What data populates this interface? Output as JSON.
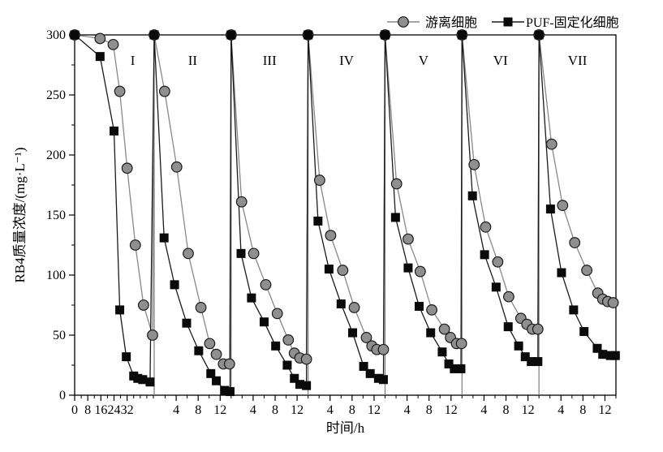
{
  "chart_data": {
    "type": "line",
    "title": "",
    "xlabel": "时间/h",
    "ylabel": "RB4质量浓度/(mg·L⁻¹)",
    "ylim": [
      0,
      300
    ],
    "y_major_ticks": [
      0,
      50,
      100,
      150,
      200,
      250,
      300
    ],
    "y_minor_step": 25,
    "grid": false,
    "legend_position": "top-right",
    "legend": [
      {
        "name": "游离细胞",
        "marker": "circle",
        "marker_color": "#8f8f8f",
        "marker_stroke": "#1a1a1a",
        "line_color": "#888888"
      },
      {
        "name": "PUF-固定化细胞",
        "marker": "square",
        "marker_color": "#0a0a0a",
        "marker_stroke": "#0a0a0a",
        "line_color": "#1a1a1a"
      }
    ],
    "cycles": [
      {
        "label": "I",
        "duration": 48.5,
        "label_pos": 0.73,
        "x_major_ticks": [
          {
            "t": 0,
            "text": "0"
          },
          {
            "t": 8,
            "text": "8"
          },
          {
            "t": 16,
            "text": "16"
          },
          {
            "t": 24,
            "text": "24"
          },
          {
            "t": 32,
            "text": "32"
          }
        ],
        "x_minor_ticks": [
          4,
          12,
          20,
          28,
          36,
          40,
          44,
          48
        ],
        "free_cells": {
          "t": [
            0,
            15.5,
            23.5,
            27.5,
            32,
            37,
            42,
            47.5
          ],
          "v": [
            300,
            297,
            292,
            253,
            189,
            125,
            75,
            50
          ]
        },
        "puf_cells": {
          "t": [
            0,
            15.5,
            24,
            27.5,
            31.5,
            36,
            38.5,
            41.5,
            46
          ],
          "v": [
            300,
            282,
            220,
            71,
            32,
            16,
            14,
            13,
            11
          ]
        }
      },
      {
        "label": "II",
        "duration": 14,
        "label_pos": 0.5,
        "x_major_ticks": [
          {
            "t": 4,
            "text": "4"
          },
          {
            "t": 8,
            "text": "8"
          },
          {
            "t": 12,
            "text": "12"
          }
        ],
        "x_minor_ticks": [
          2,
          6,
          10,
          14
        ],
        "free_cells": {
          "t": [
            0,
            1.9,
            4.1,
            6.2,
            8.5,
            10.1,
            11.3,
            12.6,
            13.7
          ],
          "v": [
            300,
            253,
            190,
            118,
            73,
            43,
            34,
            26,
            26
          ]
        },
        "puf_cells": {
          "t": [
            0,
            1.8,
            3.7,
            5.9,
            8.1,
            10.3,
            11.3,
            12.8,
            13.8
          ],
          "v": [
            300,
            131,
            92,
            60,
            37,
            18,
            12,
            4,
            3
          ]
        }
      },
      {
        "label": "III",
        "duration": 14,
        "label_pos": 0.5,
        "x_major_ticks": [
          {
            "t": 4,
            "text": "4"
          },
          {
            "t": 8,
            "text": "8"
          },
          {
            "t": 12,
            "text": "12"
          }
        ],
        "x_minor_ticks": [
          2,
          6,
          10,
          14
        ],
        "free_cells": {
          "t": [
            0,
            1.9,
            4.1,
            6.3,
            8.4,
            10.4,
            11.5,
            12.5,
            13.7
          ],
          "v": [
            300,
            161,
            118,
            92,
            68,
            46,
            35,
            31,
            30
          ]
        },
        "puf_cells": {
          "t": [
            0,
            1.8,
            3.7,
            6.0,
            8.1,
            10.2,
            11.5,
            12.5,
            13.7
          ],
          "v": [
            300,
            118,
            81,
            61,
            41,
            25,
            14,
            9,
            8
          ]
        }
      },
      {
        "label": "IV",
        "duration": 14,
        "label_pos": 0.5,
        "x_major_ticks": [
          {
            "t": 4,
            "text": "4"
          },
          {
            "t": 8,
            "text": "8"
          },
          {
            "t": 12,
            "text": "12"
          }
        ],
        "x_minor_ticks": [
          2,
          6,
          10,
          14
        ],
        "free_cells": {
          "t": [
            0,
            2.1,
            4.1,
            6.3,
            8.4,
            10.6,
            11.6,
            12.5,
            13.7
          ],
          "v": [
            300,
            179,
            133,
            104,
            73,
            48,
            41,
            38,
            38
          ]
        },
        "puf_cells": {
          "t": [
            0,
            1.8,
            3.8,
            6.0,
            8.1,
            10.1,
            11.3,
            12.8,
            13.7
          ],
          "v": [
            300,
            145,
            105,
            76,
            52,
            24,
            18,
            14,
            13
          ]
        }
      },
      {
        "label": "V",
        "duration": 14,
        "label_pos": 0.5,
        "x_major_ticks": [
          {
            "t": 4,
            "text": "4"
          },
          {
            "t": 8,
            "text": "8"
          },
          {
            "t": 12,
            "text": "12"
          }
        ],
        "x_minor_ticks": [
          2,
          6,
          10,
          14
        ],
        "free_cells": {
          "t": [
            0,
            2.1,
            4.2,
            6.4,
            8.5,
            10.8,
            11.9,
            13.0,
            13.9
          ],
          "v": [
            300,
            176,
            130,
            103,
            71,
            55,
            48,
            43,
            43
          ]
        },
        "puf_cells": {
          "t": [
            0,
            1.9,
            4.2,
            6.2,
            8.3,
            10.4,
            11.6,
            12.6,
            13.8
          ],
          "v": [
            300,
            148,
            106,
            74,
            52,
            36,
            26,
            22,
            22
          ]
        }
      },
      {
        "label": "VI",
        "duration": 14,
        "label_pos": 0.5,
        "x_major_ticks": [
          {
            "t": 4,
            "text": "4"
          },
          {
            "t": 8,
            "text": "8"
          },
          {
            "t": 12,
            "text": "12"
          }
        ],
        "x_minor_ticks": [
          2,
          6,
          10,
          14
        ],
        "free_cells": {
          "t": [
            0,
            2.2,
            4.3,
            6.5,
            8.5,
            10.7,
            11.8,
            12.8,
            13.8
          ],
          "v": [
            300,
            192,
            140,
            111,
            82,
            64,
            59,
            55,
            55
          ]
        },
        "puf_cells": {
          "t": [
            0,
            1.9,
            4.1,
            6.2,
            8.4,
            10.3,
            11.5,
            12.6,
            13.8
          ],
          "v": [
            300,
            166,
            117,
            90,
            57,
            41,
            32,
            28,
            28
          ]
        }
      },
      {
        "label": "VII",
        "duration": 14,
        "label_pos": 0.5,
        "x_major_ticks": [
          {
            "t": 4,
            "text": "4"
          },
          {
            "t": 8,
            "text": "8"
          },
          {
            "t": 12,
            "text": "12"
          }
        ],
        "x_minor_ticks": [
          2,
          6,
          10,
          14
        ],
        "free_cells": {
          "t": [
            0,
            2.3,
            4.3,
            6.5,
            8.7,
            10.7,
            11.6,
            12.5,
            13.5
          ],
          "v": [
            300,
            209,
            158,
            127,
            104,
            85,
            80,
            78,
            77
          ]
        },
        "puf_cells": {
          "t": [
            0,
            2.1,
            4.1,
            6.3,
            8.2,
            10.6,
            11.6,
            13.0,
            13.9
          ],
          "v": [
            300,
            155,
            102,
            71,
            53,
            39,
            34,
            33,
            33
          ]
        }
      }
    ]
  },
  "colors": {
    "frame": "#000000",
    "separator": "#7d7d7d",
    "background": "#ffffff"
  }
}
